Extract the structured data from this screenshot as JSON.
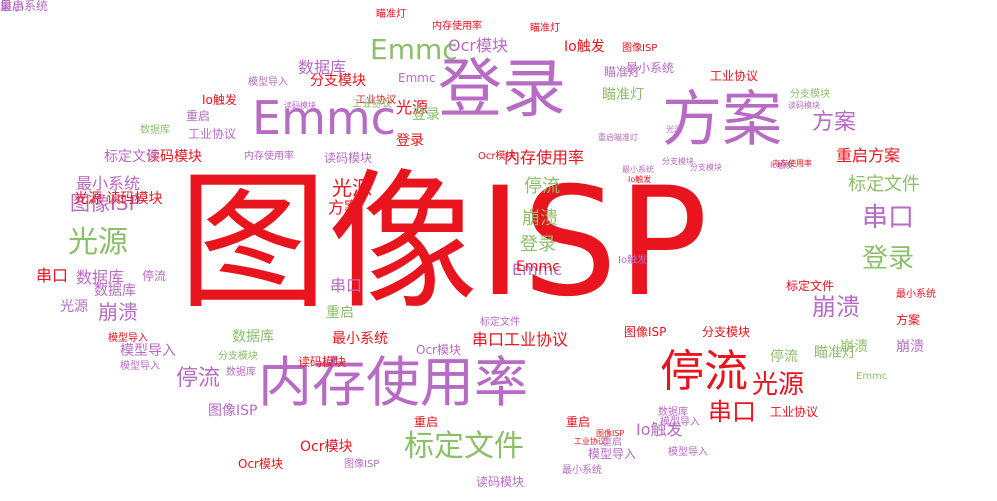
{
  "colors": {
    "red": "#e8141e",
    "purple": "#b86bc4",
    "green": "#8cbf6a"
  },
  "words": [
    {
      "text": "图像ISP",
      "color": "red"
    },
    {
      "text": "内存使用率",
      "color": "purple"
    },
    {
      "text": "登录",
      "color": "purple"
    },
    {
      "text": "方案",
      "color": "purple"
    },
    {
      "text": "Emmc",
      "color": "purple"
    },
    {
      "text": "Emmc",
      "color": "green"
    },
    {
      "text": "停流",
      "color": "red"
    },
    {
      "text": "光源",
      "color": "green"
    },
    {
      "text": "标定文件",
      "color": "green"
    },
    {
      "text": "串口",
      "color": "purple"
    },
    {
      "text": "登录",
      "color": "green"
    },
    {
      "text": "崩溃",
      "color": "purple"
    },
    {
      "text": "光源",
      "color": "red"
    },
    {
      "text": "串口",
      "color": "red"
    },
    {
      "text": "停流",
      "color": "purple"
    },
    {
      "text": "方案",
      "color": "purple"
    },
    {
      "text": "图像ISP",
      "color": "purple"
    },
    {
      "text": "Ocr模块",
      "color": "purple"
    },
    {
      "text": "Io触发",
      "color": "red"
    },
    {
      "text": "Io触发",
      "color": "purple"
    },
    {
      "text": "Ocr模块",
      "color": "red"
    },
    {
      "text": "Ocr模块",
      "color": "red"
    },
    {
      "text": "数据库",
      "color": "purple"
    },
    {
      "text": "分支模块",
      "color": "red"
    },
    {
      "text": "Emmc",
      "color": "purple"
    },
    {
      "text": "模型导入",
      "color": "purple"
    },
    {
      "text": "重启方案",
      "color": "red"
    },
    {
      "text": "标定文件",
      "color": "green"
    },
    {
      "text": "光源",
      "color": "red"
    },
    {
      "text": "方案",
      "color": "red"
    },
    {
      "text": "停流",
      "color": "green"
    },
    {
      "text": "崩溃",
      "color": "green"
    },
    {
      "text": "登录",
      "color": "green"
    },
    {
      "text": "Emmc",
      "color": "purple"
    },
    {
      "text": "串口",
      "color": "purple"
    },
    {
      "text": "重启",
      "color": "green"
    },
    {
      "text": "最小系统",
      "color": "red"
    },
    {
      "text": "串口工业协议",
      "color": "red"
    },
    {
      "text": "图像ISP",
      "color": "red"
    },
    {
      "text": "分支模块",
      "color": "red"
    },
    {
      "text": "内存使用率",
      "color": "red"
    },
    {
      "text": "读码模块",
      "color": "purple"
    },
    {
      "text": "光源",
      "color": "red"
    },
    {
      "text": "读码模块",
      "color": "red"
    },
    {
      "text": "重启",
      "color": "purple"
    },
    {
      "text": "瞄准灯",
      "color": "green"
    },
    {
      "text": "登录",
      "color": "red"
    },
    {
      "text": "登录",
      "color": "green"
    },
    {
      "text": "图像ISP",
      "color": "red"
    },
    {
      "text": "最小系统",
      "color": "purple"
    },
    {
      "text": "工业协议",
      "color": "red"
    },
    {
      "text": "瞄准灯",
      "color": "purple"
    },
    {
      "text": "崩溃",
      "color": "purple"
    },
    {
      "text": "串口",
      "color": "red"
    },
    {
      "text": "数据库",
      "color": "purple"
    },
    {
      "text": "光源",
      "color": "purple"
    },
    {
      "text": "崩溃",
      "color": "green"
    },
    {
      "text": "停流",
      "color": "green"
    },
    {
      "text": "数据库",
      "color": "green"
    },
    {
      "text": "模型导入",
      "color": "purple"
    },
    {
      "text": "数据库",
      "color": "purple"
    },
    {
      "text": "分支模块",
      "color": "green"
    },
    {
      "text": "模型导入",
      "color": "purple"
    },
    {
      "text": "标定文件",
      "color": "purple"
    },
    {
      "text": "停流",
      "color": "purple"
    },
    {
      "text": "瞄准灯",
      "color": "green"
    },
    {
      "text": "崩溃",
      "color": "purple"
    },
    {
      "text": "Emmc",
      "color": "green"
    },
    {
      "text": "工业协议",
      "color": "red"
    },
    {
      "text": "方案",
      "color": "red"
    },
    {
      "text": "最小系统",
      "color": "red"
    },
    {
      "text": "标定文件",
      "color": "red"
    },
    {
      "text": "Ocr模块",
      "color": "purple"
    },
    {
      "text": "读码模块",
      "color": "red"
    },
    {
      "text": "重启",
      "color": "red"
    },
    {
      "text": "数据库",
      "color": "purple"
    },
    {
      "text": "模型导入",
      "color": "red"
    },
    {
      "text": "模型导入",
      "color": "purple"
    },
    {
      "text": "工业协议",
      "color": "red"
    },
    {
      "text": "图像ISP",
      "color": "purple"
    },
    {
      "text": "最小系统",
      "color": "purple"
    },
    {
      "text": "读码模块",
      "color": "purple"
    },
    {
      "text": "瞄准灯",
      "color": "red"
    },
    {
      "text": "瞄准灯",
      "color": "red"
    },
    {
      "text": "内存使用率",
      "color": "red"
    },
    {
      "text": "Io触发",
      "color": "red"
    },
    {
      "text": "图像ISP",
      "color": "red"
    },
    {
      "text": "最小系统",
      "color": "purple"
    },
    {
      "text": "工业协议",
      "color": "red"
    },
    {
      "text": "Io触发",
      "color": "purple"
    },
    {
      "text": "模型导入",
      "color": "purple"
    },
    {
      "text": "Emmc",
      "color": "red"
    },
    {
      "text": "数据库",
      "color": "purple"
    },
    {
      "text": "重启",
      "color": "red"
    },
    {
      "text": "分支模块",
      "color": "green"
    },
    {
      "text": "读码模块",
      "color": "purple"
    },
    {
      "text": "工业协议",
      "color": "green"
    },
    {
      "text": "Ocr模块",
      "color": "red"
    },
    {
      "text": "内存使用率",
      "color": "purple"
    },
    {
      "text": "数据库",
      "color": "green"
    },
    {
      "text": "Io触发",
      "color": "purple"
    },
    {
      "text": "最小系统",
      "color": "purple"
    },
    {
      "text": "分支模块",
      "color": "purple"
    },
    {
      "text": "模型导入",
      "color": "purple"
    },
    {
      "text": "内存使用率",
      "color": "red"
    },
    {
      "text": "重启瞄准灯",
      "color": "purple"
    },
    {
      "text": "光源",
      "color": "purple"
    },
    {
      "text": "读码模块",
      "color": "purple"
    },
    {
      "text": "标定文件",
      "color": "purple"
    },
    {
      "text": "分支模块",
      "color": "purple"
    },
    {
      "text": "工业协议",
      "color": "purple"
    },
    {
      "text": "光源 读码模块",
      "color": "red"
    },
    {
      "text": "Io触发",
      "color": "red"
    },
    {
      "text": "重启",
      "color": "purple"
    },
    {
      "text": "图像ISP",
      "color": "purple"
    },
    {
      "text": "重启",
      "color": "purple"
    },
    {
      "text": "最小系统",
      "color": "purple"
    }
  ]
}
